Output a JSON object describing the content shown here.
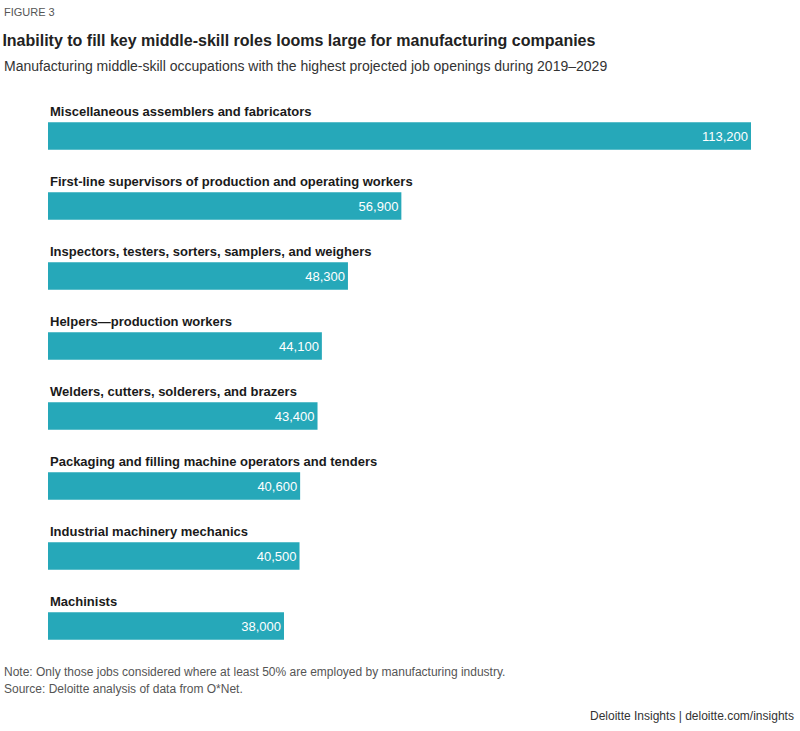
{
  "chart_data": {
    "type": "bar",
    "orientation": "horizontal",
    "figure_label": "FIGURE 3",
    "title": "Inability to fill key middle-skill roles looms large for manufacturing companies",
    "subtitle": "Manufacturing middle-skill occupations with the highest projected job openings during 2019–2029",
    "categories": [
      "Miscellaneous assemblers and fabricators",
      "First-line supervisors of production and operating workers",
      "Inspectors, testers, sorters, samplers, and weighers",
      "Helpers—production workers",
      "Welders, cutters, solderers, and brazers",
      "Packaging and filling machine operators and tenders",
      "Industrial machinery mechanics",
      "Machinists"
    ],
    "values": [
      113200,
      56900,
      48300,
      44100,
      43400,
      40600,
      40500,
      38000
    ],
    "value_labels": [
      "113,200",
      "56,900",
      "48,300",
      "44,100",
      "43,400",
      "40,600",
      "40,500",
      "38,000"
    ],
    "data_labels": true,
    "color": "#26a8b9",
    "xlim": [
      0,
      113200
    ],
    "grid": false,
    "tick_labels": false,
    "note": "Note: Only those jobs considered where at least 50% are employed by manufacturing industry.",
    "source": "Source: Deloitte analysis of data from O*Net.",
    "credit": "Deloitte Insights | deloitte.com/insights"
  }
}
